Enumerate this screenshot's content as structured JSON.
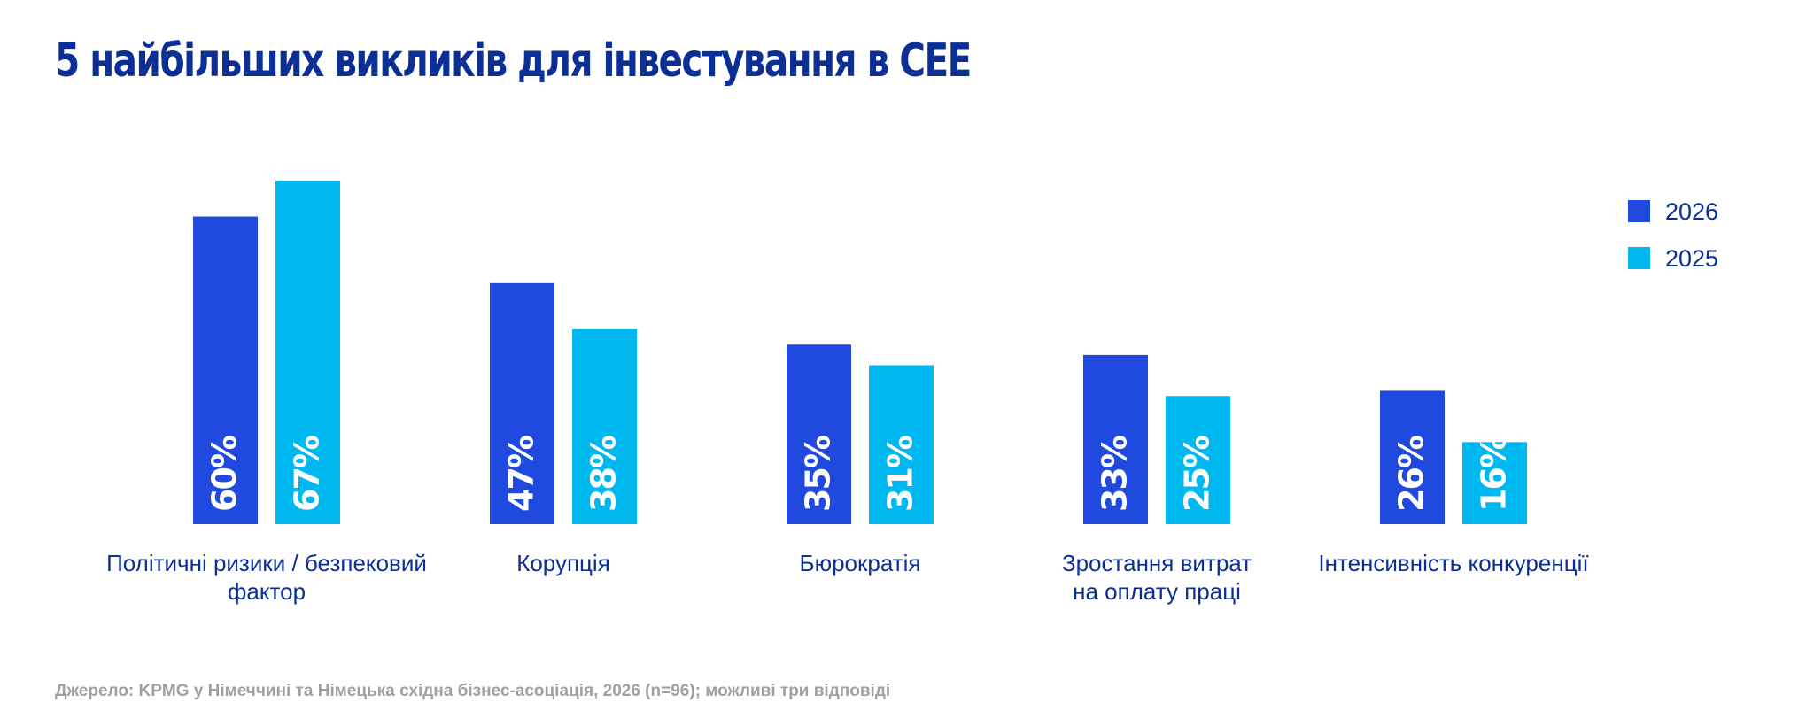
{
  "title": "5 найбільших викликів для інвестування в CEE",
  "source": "Джерело: KPMG у Німеччині та Німецька східна бізнес-асоціація, 2026 (n=96); можливі три відповіді",
  "colors": {
    "title": "#0b2f95",
    "series_2026": "#2049e0",
    "series_2025": "#00b8f0",
    "label": "#0b2f95",
    "source": "#a0a0a0"
  },
  "chart_data": {
    "type": "bar",
    "categories": [
      [
        "Політичні ризики / безпековий",
        "фактор"
      ],
      [
        "Корупція"
      ],
      [
        "Бюрократія"
      ],
      [
        "Зростання витрат",
        "на оплату праці"
      ],
      [
        "Інтенсивність конкуренції"
      ]
    ],
    "series": [
      {
        "name": "2026",
        "color": "#2049e0",
        "values": [
          60,
          47,
          35,
          33,
          26
        ]
      },
      {
        "name": "2025",
        "color": "#00b8f0",
        "values": [
          67,
          38,
          31,
          25,
          16
        ]
      }
    ],
    "ylim": [
      0,
      67
    ],
    "value_suffix": "%",
    "legend": "top-right",
    "grid": false
  }
}
